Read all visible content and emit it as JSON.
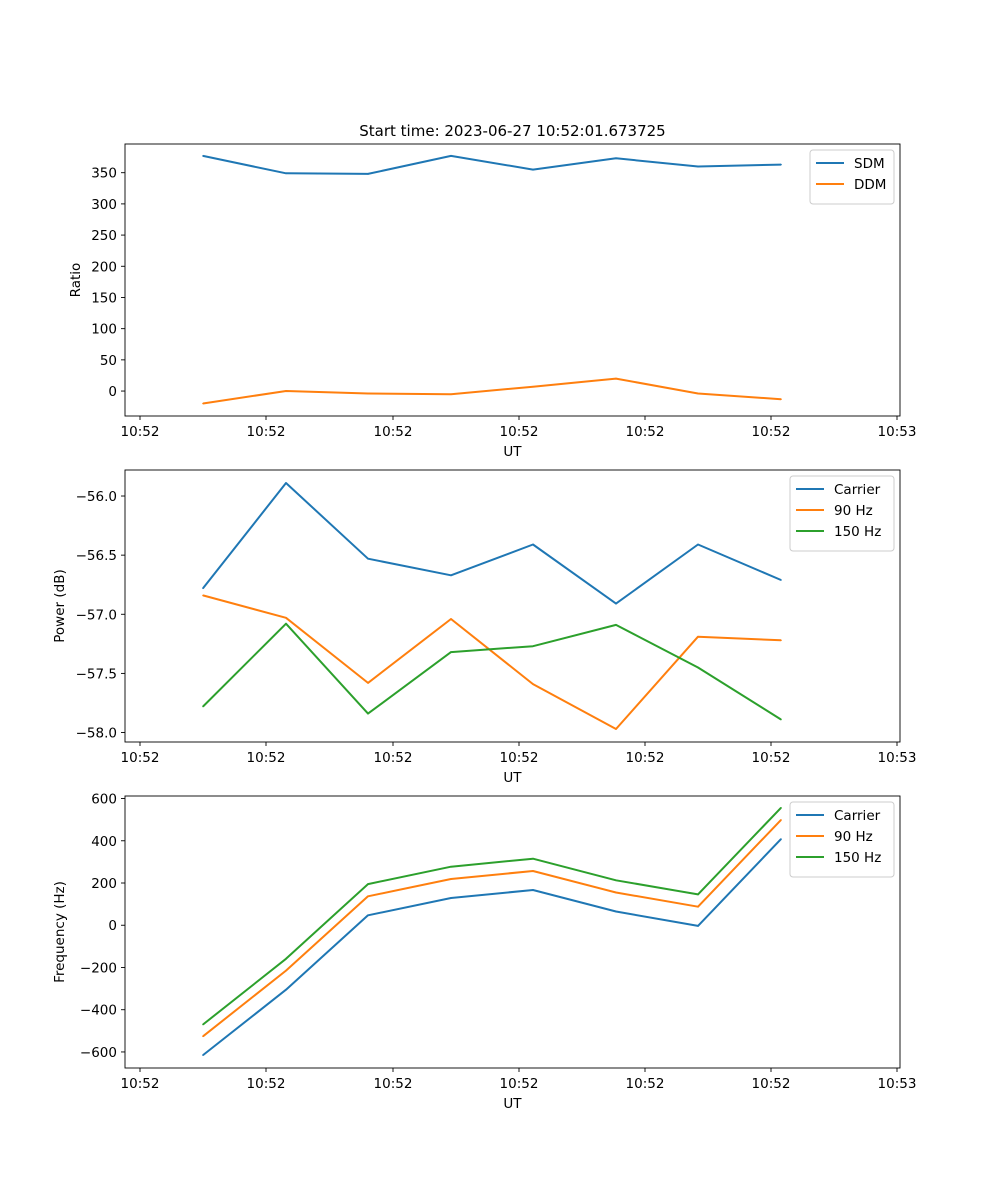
{
  "title": "Start time: 2023-06-27 10:52:01.673725",
  "colors": {
    "blue": "#1f77b4",
    "orange": "#ff7f0e",
    "green": "#2ca02c"
  },
  "chart_data": [
    {
      "type": "line",
      "xlabel": "UT",
      "ylabel": "Ratio",
      "x_tick_labels": [
        "10:52",
        "10:52",
        "10:52",
        "10:52",
        "10:52",
        "10:52",
        "10:53"
      ],
      "yticks": [
        0,
        50,
        100,
        150,
        200,
        250,
        300,
        350
      ],
      "ylim": [
        -40,
        396
      ],
      "legend": "top-right",
      "series": [
        {
          "name": "SDM",
          "color": "#1f77b4",
          "values": [
            377,
            349,
            348,
            377,
            355,
            373,
            360,
            363
          ]
        },
        {
          "name": "DDM",
          "color": "#ff7f0e",
          "values": [
            -20,
            0,
            -4,
            -5,
            7,
            20,
            -4,
            -13
          ]
        }
      ]
    },
    {
      "type": "line",
      "xlabel": "UT",
      "ylabel": "Power (dB)",
      "x_tick_labels": [
        "10:52",
        "10:52",
        "10:52",
        "10:52",
        "10:52",
        "10:52",
        "10:53"
      ],
      "yticks": [
        -56.0,
        -56.5,
        -57.0,
        -57.5,
        -58.0
      ],
      "ytick_labels": [
        "−56.0",
        "−56.5",
        "−57.0",
        "−57.5",
        "−58.0"
      ],
      "ylim": [
        -58.08,
        -55.78
      ],
      "legend": "top-right",
      "series": [
        {
          "name": "Carrier",
          "color": "#1f77b4",
          "values": [
            -56.78,
            -55.89,
            -56.53,
            -56.67,
            -56.41,
            -56.91,
            -56.41,
            -56.71
          ]
        },
        {
          "name": "90 Hz",
          "color": "#ff7f0e",
          "values": [
            -56.84,
            -57.03,
            -57.58,
            -57.04,
            -57.59,
            -57.97,
            -57.19,
            -57.22
          ]
        },
        {
          "name": "150 Hz",
          "color": "#2ca02c",
          "values": [
            -57.78,
            -57.08,
            -57.84,
            -57.32,
            -57.27,
            -57.09,
            -57.45,
            -57.89
          ]
        }
      ]
    },
    {
      "type": "line",
      "xlabel": "UT",
      "ylabel": "Frequency (Hz)",
      "x_tick_labels": [
        "10:52",
        "10:52",
        "10:52",
        "10:52",
        "10:52",
        "10:52",
        "10:53"
      ],
      "yticks": [
        -600,
        -400,
        -200,
        0,
        200,
        400,
        600
      ],
      "ytick_labels": [
        "−600",
        "−400",
        "−200",
        "0",
        "200",
        "400",
        "600"
      ],
      "ylim": [
        -676,
        612
      ],
      "legend": "top-right",
      "series": [
        {
          "name": "Carrier",
          "color": "#1f77b4",
          "values": [
            -615,
            -305,
            47,
            129,
            167,
            65,
            -3,
            408
          ]
        },
        {
          "name": "90 Hz",
          "color": "#ff7f0e",
          "values": [
            -526,
            -215,
            137,
            219,
            257,
            155,
            88,
            499
          ]
        },
        {
          "name": "150 Hz",
          "color": "#2ca02c",
          "values": [
            -470,
            -159,
            195,
            277,
            315,
            213,
            146,
            556
          ]
        }
      ]
    }
  ]
}
